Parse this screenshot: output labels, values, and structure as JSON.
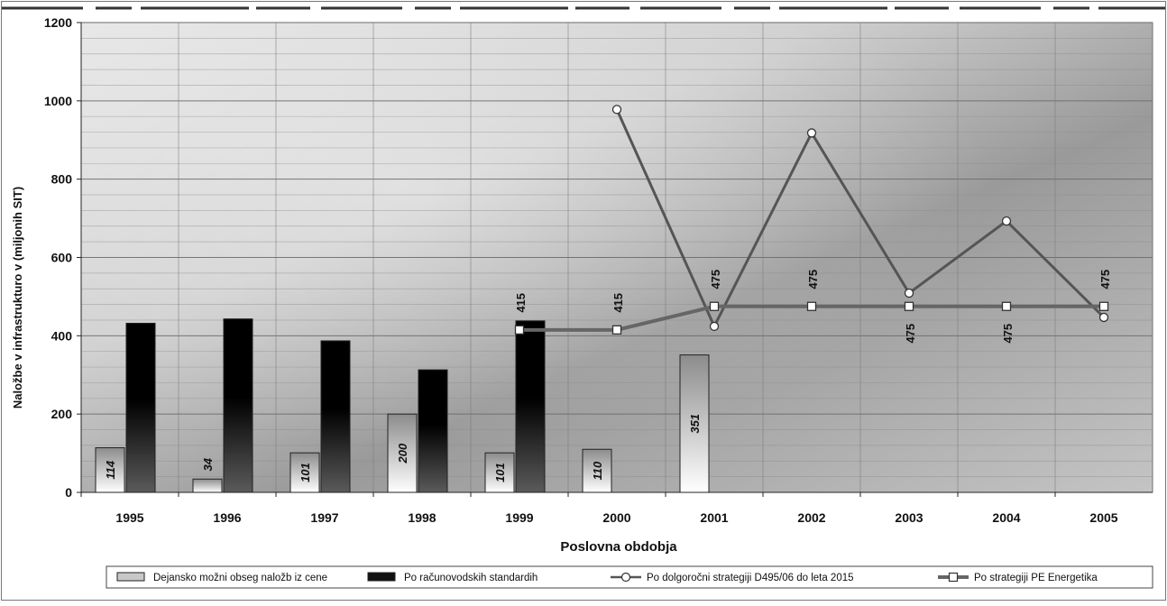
{
  "chart_data": {
    "type": "bar",
    "title": "",
    "xlabel": "Poslovna obdobja",
    "ylabel": "Naložbe v infrastrukturo v (miljonih SIT)",
    "ylim": [
      0,
      1200
    ],
    "yticks": [
      0,
      200,
      400,
      600,
      800,
      1000,
      1200
    ],
    "grid": true,
    "legend_position": "bottom",
    "categories": [
      "1995",
      "1996",
      "1997",
      "1998",
      "1999",
      "2000",
      "2001",
      "2002",
      "2003",
      "2004",
      "2005"
    ],
    "series": [
      {
        "name": "Dejansko možni obseg naložb iz cene",
        "kind": "bar",
        "color": "#c8c8c8",
        "values": [
          114,
          34,
          101,
          200,
          101,
          110,
          351,
          null,
          null,
          null,
          null
        ],
        "labels": [
          "114",
          "34",
          "101",
          "200",
          "101",
          "110",
          "351",
          "",
          "",
          "",
          ""
        ]
      },
      {
        "name": "Po računovodskih standardih",
        "kind": "bar",
        "color": "#111111",
        "values": [
          432,
          443,
          387,
          313,
          438,
          null,
          null,
          null,
          null,
          null,
          null
        ]
      },
      {
        "name": "Po dolgoročni strategiji D495/06 do leta 2015",
        "kind": "line",
        "marker": "circle",
        "color": "#555555",
        "values": [
          null,
          null,
          null,
          null,
          null,
          978,
          424,
          918,
          509,
          693,
          447
        ]
      },
      {
        "name": "Po strategiji PE Energetika",
        "kind": "line",
        "marker": "square",
        "color": "#666666",
        "values": [
          null,
          null,
          null,
          null,
          415,
          415,
          475,
          475,
          475,
          475,
          475
        ],
        "labels": [
          "",
          "",
          "",
          "",
          "415",
          "415",
          "475",
          "475",
          "475",
          "475",
          "475"
        ]
      }
    ]
  }
}
